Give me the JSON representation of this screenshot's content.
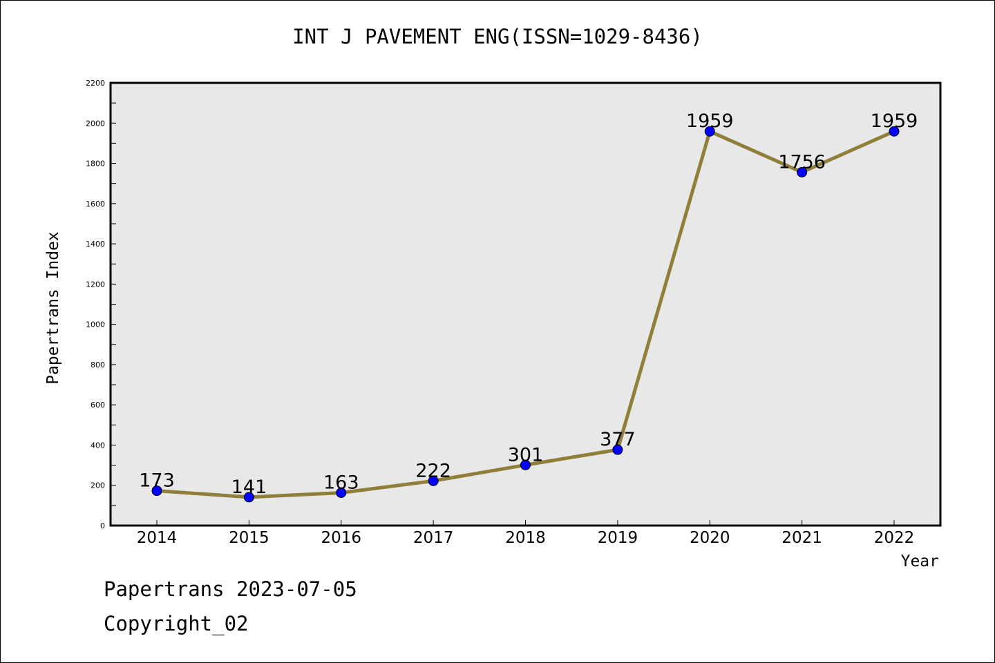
{
  "chart_data": {
    "type": "line",
    "title": "INT J PAVEMENT ENG(ISSN=1029-8436)",
    "xlabel": "Year",
    "ylabel": "Papertrans Index",
    "categories": [
      "2014",
      "2015",
      "2016",
      "2017",
      "2018",
      "2019",
      "2020",
      "2021",
      "2022"
    ],
    "series": [
      {
        "values": [
          173,
          141,
          163,
          222,
          301,
          377,
          1959,
          1756,
          1959
        ],
        "data_labels": [
          "173",
          "141",
          "163",
          "222",
          "301",
          "377",
          "1959",
          "1756",
          "1959"
        ]
      }
    ],
    "ylim": [
      0,
      2200
    ],
    "yticks": [
      "0",
      "200",
      "400",
      "600",
      "800",
      "1000",
      "1200",
      "1400",
      "1600",
      "1800",
      "2000",
      "2200"
    ],
    "grid": false,
    "colors": {
      "plot_background": "#e8e8e8",
      "line": "#8f7f3a",
      "marker": "#0000ff",
      "marker_edge": "#000000"
    }
  },
  "footer": {
    "line1": "Papertrans 2023-07-05",
    "line2": "Copyright_02"
  }
}
